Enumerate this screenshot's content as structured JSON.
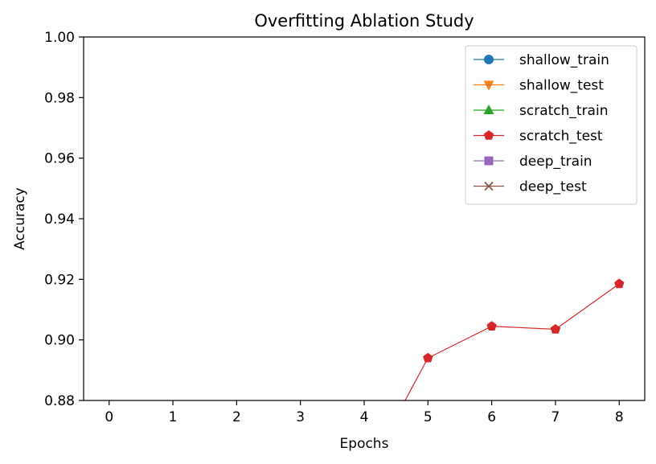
{
  "chart_data": {
    "type": "line",
    "title": "Overfitting Ablation Study",
    "xlabel": "Epochs",
    "ylabel": "Accuracy",
    "xlim": [
      -0.4,
      8.4
    ],
    "ylim": [
      0.88,
      1.0
    ],
    "xticks": [
      0,
      1,
      2,
      3,
      4,
      5,
      6,
      7,
      8
    ],
    "xtick_labels": [
      "0",
      "1",
      "2",
      "3",
      "4",
      "5",
      "6",
      "7",
      "8"
    ],
    "yticks": [
      0.88,
      0.9,
      0.92,
      0.94,
      0.96,
      0.98,
      1.0
    ],
    "ytick_labels": [
      "0.88",
      "0.90",
      "0.92",
      "0.94",
      "0.96",
      "0.98",
      "1.00"
    ],
    "legend_position": "top-right",
    "grid": false,
    "series": [
      {
        "name": "shallow_train",
        "color": "#1f77b4",
        "marker": "circle",
        "x": [],
        "y": []
      },
      {
        "name": "shallow_test",
        "color": "#ff7f0e",
        "marker": "triangle-down",
        "x": [],
        "y": []
      },
      {
        "name": "scratch_train",
        "color": "#2ca02c",
        "marker": "triangle-up",
        "x": [],
        "y": []
      },
      {
        "name": "scratch_test",
        "color": "#d62728",
        "marker": "pentagon",
        "x": [
          4,
          5,
          6,
          7,
          8
        ],
        "y": [
          0.855,
          0.894,
          0.9045,
          0.9035,
          0.9185
        ]
      },
      {
        "name": "deep_train",
        "color": "#9467bd",
        "marker": "square",
        "x": [],
        "y": []
      },
      {
        "name": "deep_test",
        "color": "#8c564b",
        "marker": "x",
        "x": [],
        "y": []
      }
    ]
  }
}
